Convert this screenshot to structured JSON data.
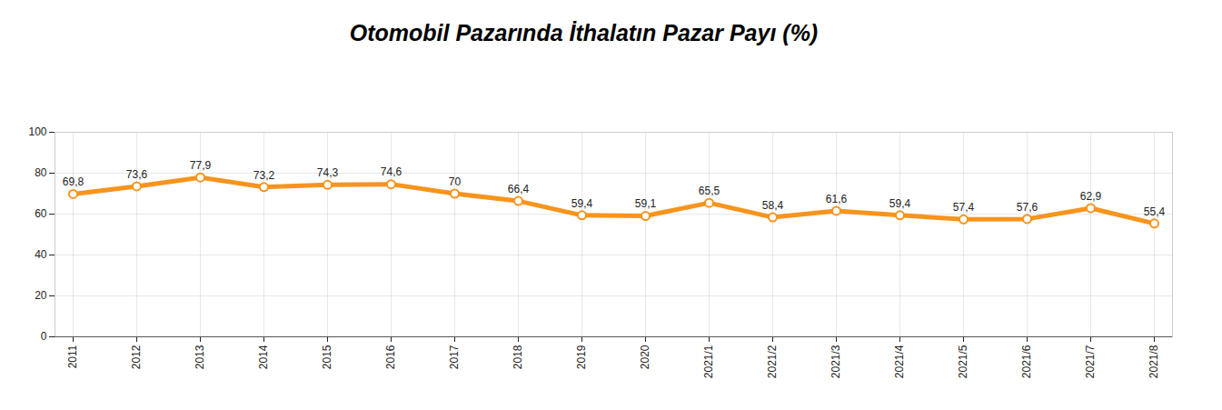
{
  "chart_data": {
    "type": "line",
    "title": "Otomobil Pazarında İthalatın Pazar Payı (%)",
    "categories": [
      "2011",
      "2012",
      "2013",
      "2014",
      "2015",
      "2016",
      "2017",
      "2018",
      "2019",
      "2020",
      "2021/1",
      "2021/2",
      "2021/3",
      "2021/4",
      "2021/5",
      "2021/6",
      "2021/7",
      "2021/8"
    ],
    "values": [
      69.8,
      73.6,
      77.9,
      73.2,
      74.3,
      74.6,
      70,
      66.4,
      59.4,
      59.1,
      65.5,
      58.4,
      61.6,
      59.4,
      57.4,
      57.6,
      62.9,
      55.4
    ],
    "value_labels": [
      "69,8",
      "73,6",
      "77,9",
      "73,2",
      "74,3",
      "74,6",
      "70",
      "66,4",
      "59,4",
      "59,1",
      "65,5",
      "58,4",
      "61,6",
      "59,4",
      "57,4",
      "57,6",
      "62,9",
      "55,4"
    ],
    "color": "#f7941d",
    "marker": "circle",
    "ylim": [
      0,
      100
    ],
    "yticks": [
      0,
      20,
      40,
      60,
      80,
      100
    ],
    "grid": true,
    "data_labels": true
  }
}
